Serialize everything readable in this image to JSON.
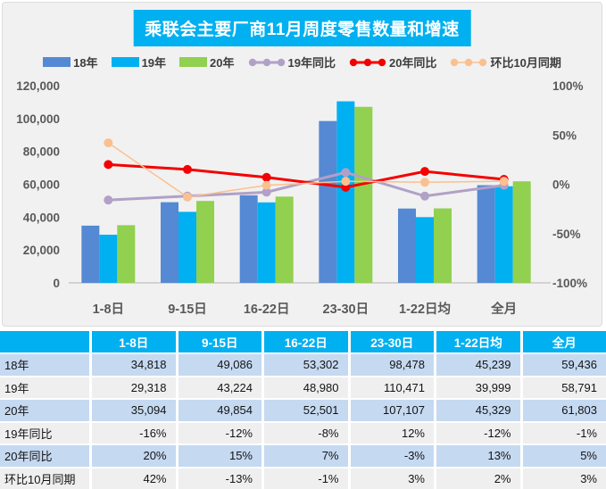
{
  "title": "乘联会主要厂商11月周度零售数量和增速",
  "colors": {
    "title_bg": "#00B0F0",
    "chart_bg": "#F1F1F1",
    "axis_text": "#595959",
    "table_header_bg": "#00B0F0",
    "row_blue": "#C5D9F1",
    "row_gray": "#EFEFEF",
    "bar_18": "#5589D3",
    "bar_19": "#00B0F0",
    "bar_20": "#92D050",
    "line_19yoy": "#B1A0C7",
    "line_20yoy": "#F40000",
    "line_mom": "#FAC090"
  },
  "chart_data": {
    "type": "bar",
    "subtype": "combo-bar-line",
    "title": "乘联会主要厂商11月周度零售数量和增速",
    "categories": [
      "1-8日",
      "9-15日",
      "16-22日",
      "23-30日",
      "1-22日均",
      "全月"
    ],
    "bar_series": [
      {
        "name": "18年",
        "color": "#5589D3",
        "values": [
          34818,
          49086,
          53302,
          98478,
          45239,
          59436
        ]
      },
      {
        "name": "19年",
        "color": "#00B0F0",
        "values": [
          29318,
          43224,
          48980,
          110471,
          39999,
          58791
        ]
      },
      {
        "name": "20年",
        "color": "#92D050",
        "values": [
          35094,
          49854,
          52501,
          107107,
          45329,
          61803
        ]
      }
    ],
    "line_series": [
      {
        "name": "19年同比",
        "color": "#B1A0C7",
        "width": 3,
        "values_pct": [
          -16,
          -12,
          -8,
          12,
          -12,
          -1
        ]
      },
      {
        "name": "20年同比",
        "color": "#F40000",
        "width": 3,
        "values_pct": [
          20,
          15,
          7,
          -3,
          13,
          5
        ]
      },
      {
        "name": "环比10月同期",
        "color": "#FAC090",
        "width": 1.5,
        "values_pct": [
          42,
          -13,
          -1,
          3,
          2,
          3
        ]
      }
    ],
    "left_axis": {
      "min": 0,
      "max": 120000,
      "step": 20000,
      "tick_labels": [
        "0",
        "20,000",
        "40,000",
        "60,000",
        "80,000",
        "100,000",
        "120,000"
      ]
    },
    "right_axis": {
      "min": -100,
      "max": 100,
      "step": 50,
      "tick_labels": [
        "-100%",
        "-50%",
        "0%",
        "50%",
        "100%"
      ]
    },
    "grid": false,
    "legend_position": "top"
  },
  "table": {
    "header": [
      "",
      "1-8日",
      "9-15日",
      "16-22日",
      "23-30日",
      "1-22日均",
      "全月"
    ],
    "rows": [
      {
        "label": "18年",
        "tone": "blue",
        "cells": [
          "34,818",
          "49,086",
          "53,302",
          "98,478",
          "45,239",
          "59,436"
        ]
      },
      {
        "label": "19年",
        "tone": "gray",
        "cells": [
          "29,318",
          "43,224",
          "48,980",
          "110,471",
          "39,999",
          "58,791"
        ]
      },
      {
        "label": "20年",
        "tone": "blue",
        "cells": [
          "35,094",
          "49,854",
          "52,501",
          "107,107",
          "45,329",
          "61,803"
        ]
      },
      {
        "label": "19年同比",
        "tone": "gray",
        "cells": [
          "-16%",
          "-12%",
          "-8%",
          "12%",
          "-12%",
          "-1%"
        ]
      },
      {
        "label": "20年同比",
        "tone": "blue",
        "cells": [
          "20%",
          "15%",
          "7%",
          "-3%",
          "13%",
          "5%"
        ]
      },
      {
        "label": "环比10月同期",
        "tone": "gray",
        "cells": [
          "42%",
          "-13%",
          "-1%",
          "3%",
          "2%",
          "3%"
        ]
      }
    ]
  }
}
